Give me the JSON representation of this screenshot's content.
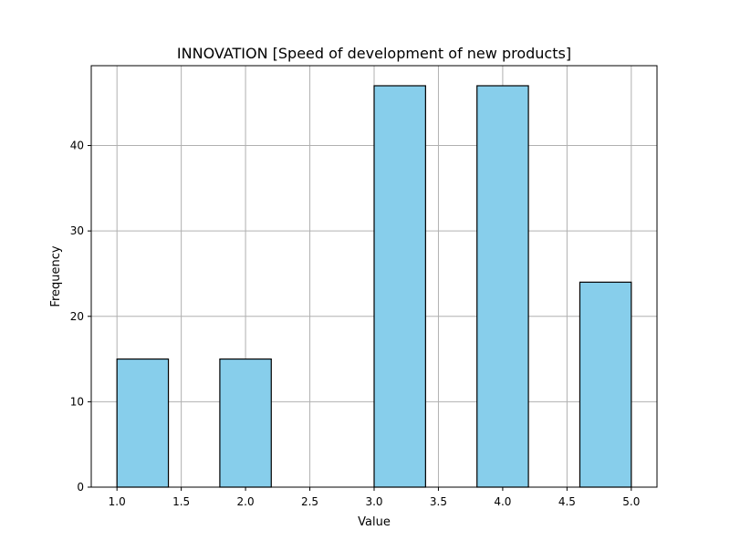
{
  "chart_data": {
    "type": "bar",
    "title": "INNOVATION [Speed of development of new products]",
    "xlabel": "Value",
    "ylabel": "Frequency",
    "xlim": [
      0.8,
      5.2
    ],
    "ylim": [
      0,
      49.35
    ],
    "xticks": [
      "1.0",
      "1.5",
      "2.0",
      "2.5",
      "3.0",
      "3.5",
      "4.0",
      "4.5",
      "5.0"
    ],
    "yticks": [
      "0",
      "10",
      "20",
      "30",
      "40"
    ],
    "grid": true,
    "bar_color": "#87ceeb",
    "edge_color": "#000000",
    "bins": [
      {
        "start": 1.0,
        "end": 1.4,
        "value": 15
      },
      {
        "start": 1.8,
        "end": 2.2,
        "value": 15
      },
      {
        "start": 3.0,
        "end": 3.4,
        "value": 47
      },
      {
        "start": 3.8,
        "end": 4.2,
        "value": 47
      },
      {
        "start": 4.6,
        "end": 5.0,
        "value": 24
      }
    ]
  }
}
